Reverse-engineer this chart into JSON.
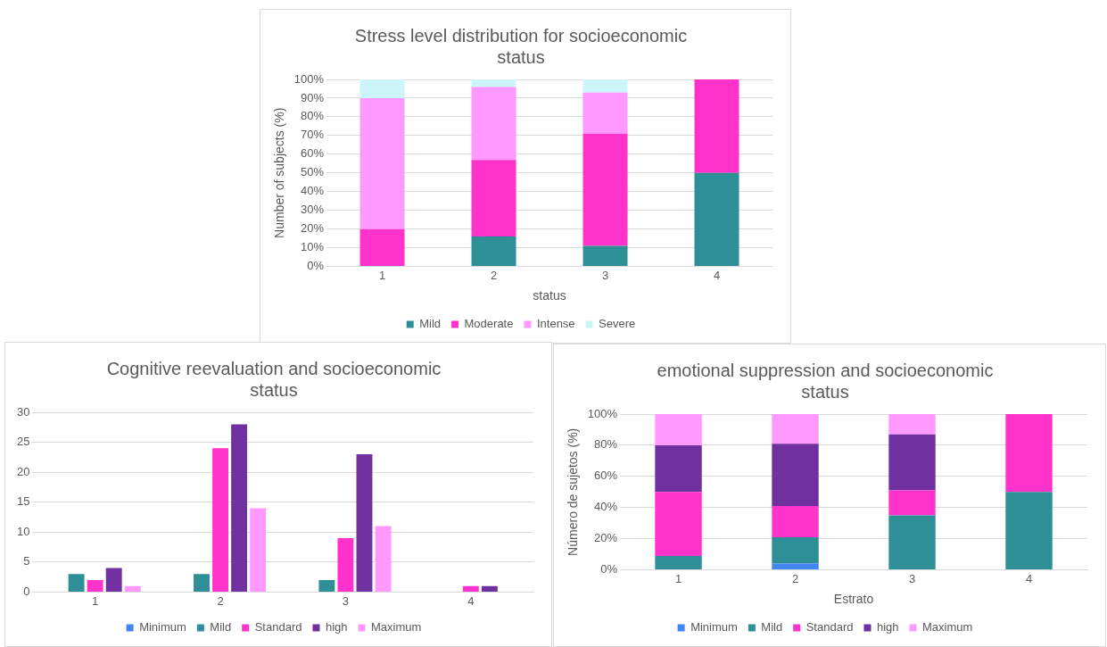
{
  "chart_data": [
    {
      "type": "bar",
      "title": "Stress level distribution for socioeconomic status",
      "xlabel": "status",
      "ylabel": "Number of subjects (%)",
      "categories": [
        "1",
        "2",
        "3",
        "4"
      ],
      "stacked": true,
      "ylim": [
        0,
        100
      ],
      "yticks": [
        {
          "value": 0,
          "label": "0%"
        },
        {
          "value": 10,
          "label": "10%"
        },
        {
          "value": 20,
          "label": "20%"
        },
        {
          "value": 30,
          "label": "30%"
        },
        {
          "value": 40,
          "label": "40%"
        },
        {
          "value": 50,
          "label": "50%"
        },
        {
          "value": 60,
          "label": "60%"
        },
        {
          "value": 70,
          "label": "70%"
        },
        {
          "value": 80,
          "label": "80%"
        },
        {
          "value": 90,
          "label": "90%"
        },
        {
          "value": 100,
          "label": "100%"
        }
      ],
      "grid": "y",
      "legend": "bottom",
      "series": [
        {
          "name": "Mild",
          "color": "#2e8f97",
          "values": [
            0,
            16,
            11,
            50
          ]
        },
        {
          "name": "Moderate",
          "color": "#ff33cc",
          "values": [
            20,
            41,
            60,
            50
          ]
        },
        {
          "name": "Intense",
          "color": "#ff99ff",
          "values": [
            70,
            39,
            22,
            0
          ]
        },
        {
          "name": "Severe",
          "color": "#ccf5fa",
          "values": [
            10,
            4,
            7,
            0
          ]
        }
      ]
    },
    {
      "type": "bar",
      "title": "Cognitive reevaluation and socioeconomic status",
      "categories": [
        "1",
        "2",
        "3",
        "4"
      ],
      "ylim": [
        0,
        30
      ],
      "yticks": [
        0,
        5,
        10,
        15,
        20,
        25,
        30
      ],
      "grid": "y",
      "legend": "bottom",
      "series": [
        {
          "name": "Minimum",
          "color": "#4285f4",
          "values": [
            0,
            0,
            0,
            0
          ]
        },
        {
          "name": "Mild",
          "color": "#2e8f97",
          "values": [
            3,
            3,
            2,
            0
          ]
        },
        {
          "name": "Standard",
          "color": "#ff33cc",
          "values": [
            2,
            24,
            9,
            1
          ]
        },
        {
          "name": "high",
          "color": "#7030a0",
          "values": [
            4,
            28,
            23,
            1
          ]
        },
        {
          "name": "Maximum",
          "color": "#ff99ff",
          "values": [
            1,
            14,
            11,
            0
          ]
        }
      ]
    },
    {
      "type": "bar",
      "title": "emotional suppression and socioeconomic status",
      "xlabel": "Estrato",
      "ylabel": "Número de sujetos (%)",
      "categories": [
        "1",
        "2",
        "3",
        "4"
      ],
      "stacked": true,
      "ylim": [
        0,
        100
      ],
      "yticks": [
        {
          "value": 0,
          "label": "0%"
        },
        {
          "value": 20,
          "label": "20%"
        },
        {
          "value": 40,
          "label": "40%"
        },
        {
          "value": 60,
          "label": "60%"
        },
        {
          "value": 80,
          "label": "80%"
        },
        {
          "value": 100,
          "label": "100%"
        }
      ],
      "grid": "y",
      "legend": "bottom",
      "series": [
        {
          "name": "Minimum",
          "color": "#4285f4",
          "values": [
            0,
            4,
            0,
            0
          ]
        },
        {
          "name": "Mild",
          "color": "#2e8f97",
          "values": [
            9,
            17,
            35,
            50
          ]
        },
        {
          "name": "Standard",
          "color": "#ff33cc",
          "values": [
            41,
            20,
            16,
            50
          ]
        },
        {
          "name": "high",
          "color": "#7030a0",
          "values": [
            30,
            40,
            36,
            0
          ]
        },
        {
          "name": "Maximum",
          "color": "#ff99ff",
          "values": [
            20,
            19,
            13,
            0
          ]
        }
      ]
    }
  ]
}
